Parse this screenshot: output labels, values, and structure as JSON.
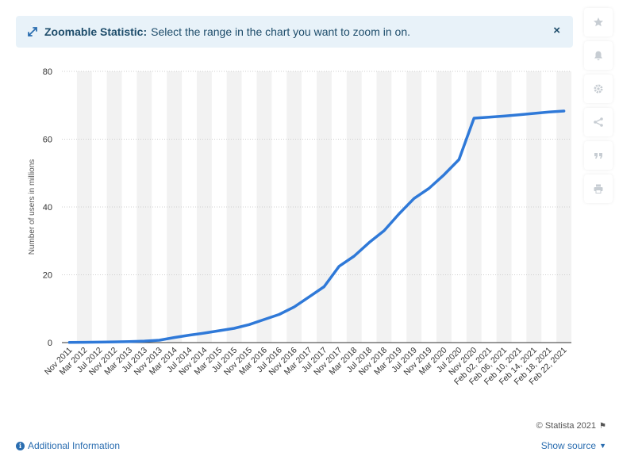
{
  "banner": {
    "lead": "Zoomable Statistic:",
    "text": "Select the range in the chart you want to zoom in on.",
    "close_label": "×"
  },
  "sidebar": {
    "tools": [
      "star-icon",
      "bell-icon",
      "gear-icon",
      "share-icon",
      "quote-icon",
      "print-icon"
    ]
  },
  "chart_data": {
    "type": "line",
    "title": "",
    "xlabel": "",
    "ylabel": "Number of users in millions",
    "ylim": [
      0,
      80
    ],
    "yticks": [
      0,
      20,
      40,
      60,
      80
    ],
    "grid": true,
    "line_color": "#2f79d8",
    "x": [
      "Nov 2011",
      "Mar 2012",
      "Jul 2012",
      "Nov 2012",
      "Mar 2013",
      "Jul 2013",
      "Nov 2013",
      "Mar 2014",
      "Jul 2014",
      "Nov 2014",
      "Mar 2015",
      "Jul 2015",
      "Nov 2015",
      "Mar 2016",
      "Jul 2016",
      "Nov 2016",
      "Mar 2017",
      "Jul 2017",
      "Nov 2017",
      "Mar 2018",
      "Jul 2018",
      "Nov 2018",
      "Mar 2019",
      "Jul 2019",
      "Nov 2019",
      "Mar 2020",
      "Jul 2020",
      "Nov 2020",
      "Feb 02, 2021",
      "Feb 06, 2021",
      "Feb 10, 2021",
      "Feb 14, 2021",
      "Feb 18, 2021",
      "Feb 22, 2021"
    ],
    "values": [
      0.05,
      0.1,
      0.15,
      0.2,
      0.3,
      0.45,
      0.7,
      1.5,
      2.2,
      2.8,
      3.5,
      4.2,
      5.3,
      6.8,
      8.3,
      10.5,
      13.5,
      16.5,
      22.5,
      25.5,
      29.5,
      33,
      38,
      42.5,
      45.5,
      49.5,
      54,
      66.2,
      66.5,
      66.8,
      67.2,
      67.6,
      68,
      68.3
    ]
  },
  "footer": {
    "additional_info": "Additional Information",
    "show_source": "Show source",
    "credit": "© Statista 2021"
  }
}
